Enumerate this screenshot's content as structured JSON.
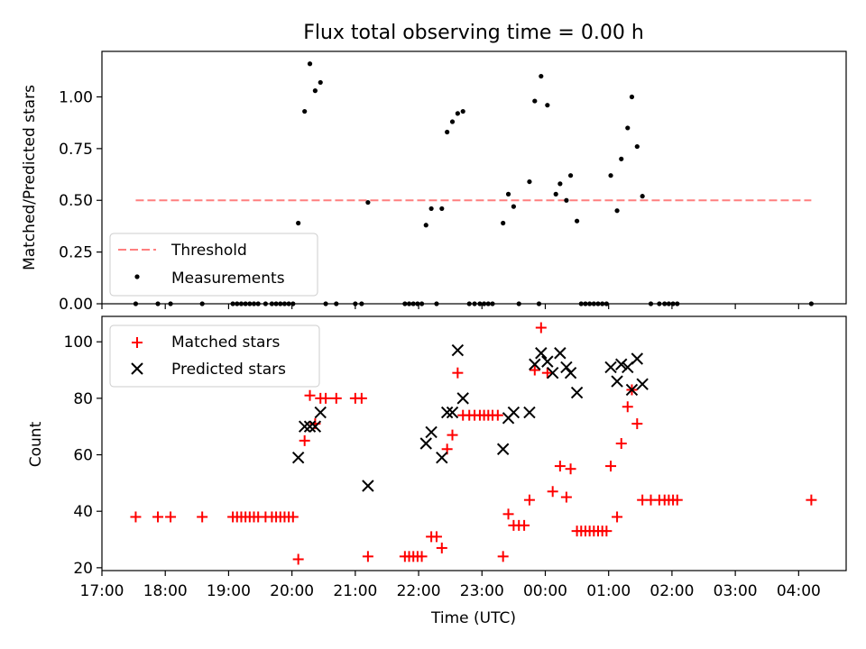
{
  "chart_data": [
    {
      "type": "scatter",
      "title": "Flux total observing time = 0.00 h",
      "xlabel": "",
      "ylabel": "Matched/Predicted stars",
      "xlim": [
        "17:00",
        "04:45"
      ],
      "ylim": [
        0,
        1.22
      ],
      "yticks": [
        "0.00",
        "0.25",
        "0.50",
        "0.75",
        "1.00"
      ],
      "legend_position": "lower-left",
      "threshold": {
        "name": "Threshold",
        "value": 0.5,
        "x_range": [
          "17:32",
          "04:12"
        ],
        "color": "#ff7f7f",
        "style": "dashed"
      },
      "series": [
        {
          "name": "Measurements",
          "marker": "dot",
          "color": "#000000",
          "points": [
            [
              "17:32",
              0
            ],
            [
              "17:53",
              0
            ],
            [
              "18:05",
              0
            ],
            [
              "18:35",
              0
            ],
            [
              "19:04",
              0
            ],
            [
              "19:08",
              0
            ],
            [
              "19:12",
              0
            ],
            [
              "19:16",
              0
            ],
            [
              "19:20",
              0
            ],
            [
              "19:24",
              0
            ],
            [
              "19:28",
              0
            ],
            [
              "19:35",
              0
            ],
            [
              "19:41",
              0
            ],
            [
              "19:45",
              0
            ],
            [
              "19:49",
              0
            ],
            [
              "19:53",
              0
            ],
            [
              "19:57",
              0
            ],
            [
              "20:01",
              0
            ],
            [
              "20:06",
              0.39
            ],
            [
              "20:12",
              0.93
            ],
            [
              "20:17",
              1.16
            ],
            [
              "20:22",
              1.03
            ],
            [
              "20:27",
              1.07
            ],
            [
              "20:32",
              0
            ],
            [
              "20:42",
              0
            ],
            [
              "21:00",
              0
            ],
            [
              "21:06",
              0
            ],
            [
              "21:12",
              0.49
            ],
            [
              "21:47",
              0
            ],
            [
              "21:51",
              0
            ],
            [
              "21:55",
              0
            ],
            [
              "21:59",
              0
            ],
            [
              "22:03",
              0
            ],
            [
              "22:07",
              0.38
            ],
            [
              "22:12",
              0.46
            ],
            [
              "22:17",
              0
            ],
            [
              "22:22",
              0.46
            ],
            [
              "22:27",
              0.83
            ],
            [
              "22:32",
              0.88
            ],
            [
              "22:37",
              0.92
            ],
            [
              "22:42",
              0.93
            ],
            [
              "22:48",
              0
            ],
            [
              "22:53",
              0
            ],
            [
              "22:58",
              0
            ],
            [
              "23:02",
              0
            ],
            [
              "23:06",
              0
            ],
            [
              "23:10",
              0
            ],
            [
              "23:20",
              0.39
            ],
            [
              "23:25",
              0.53
            ],
            [
              "23:30",
              0.47
            ],
            [
              "23:35",
              0
            ],
            [
              "23:45",
              0.59
            ],
            [
              "23:50",
              0.98
            ],
            [
              "23:54",
              0
            ],
            [
              "23:56",
              1.1
            ],
            [
              "24:02",
              0.96
            ],
            [
              "24:10",
              0.53
            ],
            [
              "24:14",
              0.58
            ],
            [
              "24:20",
              0.5
            ],
            [
              "24:24",
              0.62
            ],
            [
              "24:30",
              0.4
            ],
            [
              "24:34",
              0
            ],
            [
              "24:38",
              0
            ],
            [
              "24:42",
              0
            ],
            [
              "24:46",
              0
            ],
            [
              "24:50",
              0
            ],
            [
              "24:54",
              0
            ],
            [
              "24:58",
              0
            ],
            [
              "25:02",
              0.62
            ],
            [
              "25:08",
              0.45
            ],
            [
              "25:12",
              0.7
            ],
            [
              "25:18",
              0.85
            ],
            [
              "25:22",
              1.0
            ],
            [
              "25:27",
              0.76
            ],
            [
              "25:32",
              0.52
            ],
            [
              "25:40",
              0
            ],
            [
              "25:48",
              0
            ],
            [
              "25:53",
              0
            ],
            [
              "25:57",
              0
            ],
            [
              "26:01",
              0
            ],
            [
              "26:05",
              0
            ],
            [
              "28:12",
              0
            ]
          ]
        }
      ]
    },
    {
      "type": "scatter",
      "title": "",
      "xlabel": "Time (UTC)",
      "ylabel": "Count",
      "xlim": [
        "17:00",
        "04:45"
      ],
      "ylim": [
        19,
        109
      ],
      "xticks": [
        "17:00",
        "18:00",
        "19:00",
        "20:00",
        "21:00",
        "22:00",
        "23:00",
        "00:00",
        "01:00",
        "02:00",
        "03:00",
        "04:00"
      ],
      "yticks": [
        "20",
        "40",
        "60",
        "80",
        "100"
      ],
      "legend_position": "upper-left",
      "series": [
        {
          "name": "Matched stars",
          "marker": "plus",
          "color": "#ff0000",
          "points": [
            [
              "17:32",
              38
            ],
            [
              "17:53",
              38
            ],
            [
              "18:05",
              38
            ],
            [
              "18:35",
              38
            ],
            [
              "19:04",
              38
            ],
            [
              "19:08",
              38
            ],
            [
              "19:12",
              38
            ],
            [
              "19:16",
              38
            ],
            [
              "19:20",
              38
            ],
            [
              "19:24",
              38
            ],
            [
              "19:28",
              38
            ],
            [
              "19:35",
              38
            ],
            [
              "19:41",
              38
            ],
            [
              "19:45",
              38
            ],
            [
              "19:49",
              38
            ],
            [
              "19:53",
              38
            ],
            [
              "19:57",
              38
            ],
            [
              "20:01",
              38
            ],
            [
              "20:06",
              23
            ],
            [
              "20:12",
              65
            ],
            [
              "20:17",
              81
            ],
            [
              "20:22",
              71
            ],
            [
              "20:27",
              80
            ],
            [
              "20:32",
              80
            ],
            [
              "20:42",
              80
            ],
            [
              "21:00",
              80
            ],
            [
              "21:06",
              80
            ],
            [
              "21:12",
              24
            ],
            [
              "21:47",
              24
            ],
            [
              "21:51",
              24
            ],
            [
              "21:55",
              24
            ],
            [
              "21:59",
              24
            ],
            [
              "22:03",
              24
            ],
            [
              "22:12",
              31
            ],
            [
              "22:17",
              31
            ],
            [
              "22:22",
              27
            ],
            [
              "22:27",
              62
            ],
            [
              "22:32",
              67
            ],
            [
              "22:37",
              89
            ],
            [
              "22:42",
              74
            ],
            [
              "22:48",
              74
            ],
            [
              "22:53",
              74
            ],
            [
              "22:58",
              74
            ],
            [
              "23:02",
              74
            ],
            [
              "23:06",
              74
            ],
            [
              "23:10",
              74
            ],
            [
              "23:15",
              74
            ],
            [
              "23:20",
              24
            ],
            [
              "23:25",
              39
            ],
            [
              "23:30",
              35
            ],
            [
              "23:35",
              35
            ],
            [
              "23:40",
              35
            ],
            [
              "23:45",
              44
            ],
            [
              "23:50",
              90
            ],
            [
              "23:56",
              105
            ],
            [
              "24:02",
              89
            ],
            [
              "24:07",
              47
            ],
            [
              "24:14",
              56
            ],
            [
              "24:20",
              45
            ],
            [
              "24:24",
              55
            ],
            [
              "24:30",
              33
            ],
            [
              "24:34",
              33
            ],
            [
              "24:38",
              33
            ],
            [
              "24:42",
              33
            ],
            [
              "24:46",
              33
            ],
            [
              "24:50",
              33
            ],
            [
              "24:54",
              33
            ],
            [
              "24:58",
              33
            ],
            [
              "25:02",
              56
            ],
            [
              "25:08",
              38
            ],
            [
              "25:12",
              64
            ],
            [
              "25:18",
              77
            ],
            [
              "25:22",
              83
            ],
            [
              "25:27",
              71
            ],
            [
              "25:32",
              44
            ],
            [
              "25:40",
              44
            ],
            [
              "25:48",
              44
            ],
            [
              "25:53",
              44
            ],
            [
              "25:57",
              44
            ],
            [
              "26:01",
              44
            ],
            [
              "26:05",
              44
            ],
            [
              "28:12",
              44
            ]
          ]
        },
        {
          "name": "Predicted stars",
          "marker": "x",
          "color": "#000000",
          "points": [
            [
              "20:06",
              59
            ],
            [
              "20:12",
              70
            ],
            [
              "20:17",
              70
            ],
            [
              "20:22",
              70
            ],
            [
              "20:27",
              75
            ],
            [
              "21:12",
              49
            ],
            [
              "22:07",
              64
            ],
            [
              "22:12",
              68
            ],
            [
              "22:22",
              59
            ],
            [
              "22:27",
              75
            ],
            [
              "22:32",
              75
            ],
            [
              "22:37",
              97
            ],
            [
              "22:42",
              80
            ],
            [
              "23:20",
              62
            ],
            [
              "23:25",
              73
            ],
            [
              "23:30",
              75
            ],
            [
              "23:45",
              75
            ],
            [
              "23:50",
              92
            ],
            [
              "23:56",
              96
            ],
            [
              "24:02",
              93
            ],
            [
              "24:07",
              89
            ],
            [
              "24:14",
              96
            ],
            [
              "24:20",
              91
            ],
            [
              "24:24",
              89
            ],
            [
              "24:30",
              82
            ],
            [
              "25:02",
              91
            ],
            [
              "25:08",
              86
            ],
            [
              "25:12",
              92
            ],
            [
              "25:18",
              91
            ],
            [
              "25:22",
              83
            ],
            [
              "25:27",
              94
            ],
            [
              "25:32",
              85
            ]
          ]
        }
      ]
    }
  ]
}
